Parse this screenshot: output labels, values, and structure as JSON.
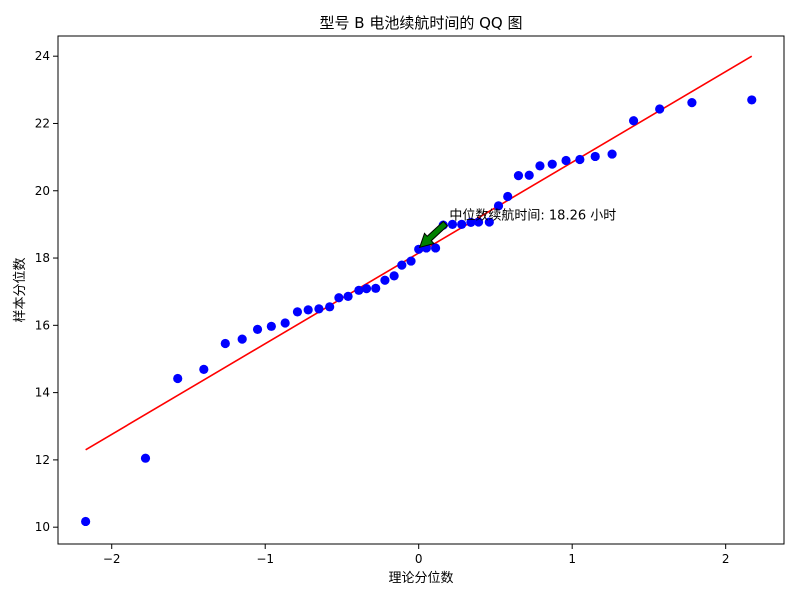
{
  "chart_data": {
    "type": "scatter",
    "title": "型号 B 电池续航时间的 QQ 图",
    "xlabel": "理论分位数",
    "ylabel": "样本分位数",
    "xlim": [
      -2.35,
      2.38
    ],
    "ylim": [
      9.5,
      24.6
    ],
    "xticks": [
      -2,
      -1,
      0,
      1,
      2
    ],
    "yticks": [
      10,
      12,
      14,
      16,
      18,
      20,
      22,
      24
    ],
    "grid": false,
    "colors": {
      "points": "#0000ff",
      "line": "#ff0000",
      "arrow": "#008000"
    },
    "points": [
      {
        "x": -2.17,
        "y": 10.17
      },
      {
        "x": -1.78,
        "y": 12.05
      },
      {
        "x": -1.57,
        "y": 14.42
      },
      {
        "x": -1.4,
        "y": 14.69
      },
      {
        "x": -1.26,
        "y": 15.46
      },
      {
        "x": -1.15,
        "y": 15.59
      },
      {
        "x": -1.05,
        "y": 15.88
      },
      {
        "x": -0.96,
        "y": 15.97
      },
      {
        "x": -0.87,
        "y": 16.07
      },
      {
        "x": -0.79,
        "y": 16.4
      },
      {
        "x": -0.72,
        "y": 16.46
      },
      {
        "x": -0.65,
        "y": 16.49
      },
      {
        "x": -0.58,
        "y": 16.55
      },
      {
        "x": -0.52,
        "y": 16.82
      },
      {
        "x": -0.46,
        "y": 16.86
      },
      {
        "x": -0.39,
        "y": 17.04
      },
      {
        "x": -0.34,
        "y": 17.09
      },
      {
        "x": -0.28,
        "y": 17.1
      },
      {
        "x": -0.22,
        "y": 17.34
      },
      {
        "x": -0.16,
        "y": 17.47
      },
      {
        "x": -0.11,
        "y": 17.79
      },
      {
        "x": -0.05,
        "y": 17.91
      },
      {
        "x": 0.0,
        "y": 18.26
      },
      {
        "x": 0.05,
        "y": 18.3
      },
      {
        "x": 0.11,
        "y": 18.3
      },
      {
        "x": 0.16,
        "y": 18.98
      },
      {
        "x": 0.22,
        "y": 19.0
      },
      {
        "x": 0.28,
        "y": 19.0
      },
      {
        "x": 0.34,
        "y": 19.06
      },
      {
        "x": 0.39,
        "y": 19.07
      },
      {
        "x": 0.46,
        "y": 19.07
      },
      {
        "x": 0.52,
        "y": 19.55
      },
      {
        "x": 0.58,
        "y": 19.83
      },
      {
        "x": 0.65,
        "y": 20.45
      },
      {
        "x": 0.72,
        "y": 20.46
      },
      {
        "x": 0.79,
        "y": 20.74
      },
      {
        "x": 0.87,
        "y": 20.79
      },
      {
        "x": 0.96,
        "y": 20.9
      },
      {
        "x": 1.05,
        "y": 20.93
      },
      {
        "x": 1.15,
        "y": 21.02
      },
      {
        "x": 1.26,
        "y": 21.09
      },
      {
        "x": 1.4,
        "y": 22.08
      },
      {
        "x": 1.57,
        "y": 22.43
      },
      {
        "x": 1.78,
        "y": 22.62
      },
      {
        "x": 2.17,
        "y": 22.7
      }
    ],
    "fit_line": {
      "x": [
        -2.17,
        2.17
      ],
      "y": [
        12.3,
        24.0
      ]
    },
    "annotation": {
      "text": "中位数续航时间: 18.26 小时",
      "point": {
        "x": 0.0,
        "y": 18.26
      },
      "text_anchor": {
        "x": 0.2,
        "y": 19.26
      }
    }
  }
}
